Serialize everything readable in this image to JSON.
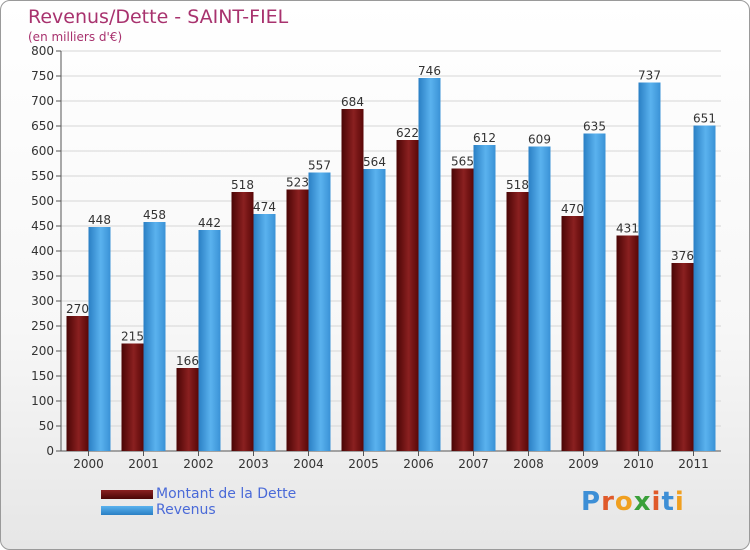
{
  "header": {
    "title": "Revenus/Dette - SAINT-FIEL",
    "subtitle": "(en milliers d'€)"
  },
  "legend": {
    "items": [
      {
        "label": "Montant de la Dette",
        "color": "#6e0b0b"
      },
      {
        "label": "Revenus",
        "color": "#3d9be3"
      }
    ]
  },
  "logo": {
    "text": "Proxiti"
  },
  "chart_data": {
    "type": "bar",
    "title": "Revenus/Dette - SAINT-FIEL",
    "subtitle": "(en milliers d'€)",
    "categories": [
      "2000",
      "2001",
      "2002",
      "2003",
      "2004",
      "2005",
      "2006",
      "2007",
      "2008",
      "2009",
      "2010",
      "2011"
    ],
    "series": [
      {
        "name": "Montant de la Dette",
        "color": "#6e0b0b",
        "values": [
          270,
          215,
          166,
          518,
          523,
          684,
          622,
          565,
          518,
          470,
          431,
          376
        ]
      },
      {
        "name": "Revenus",
        "color": "#3d9be3",
        "values": [
          448,
          458,
          442,
          474,
          557,
          564,
          746,
          612,
          609,
          635,
          737,
          651
        ]
      }
    ],
    "ylim": [
      0,
      800
    ],
    "yticks": [
      0,
      50,
      100,
      150,
      200,
      250,
      300,
      350,
      400,
      450,
      500,
      550,
      600,
      650,
      700,
      750,
      800
    ],
    "grid": true,
    "legend_position": "bottom-left"
  }
}
